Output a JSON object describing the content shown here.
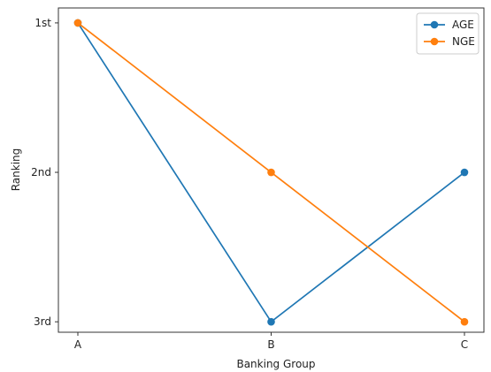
{
  "chart_data": {
    "type": "line",
    "title": "",
    "xlabel": "Banking Group",
    "ylabel": "Ranking",
    "categories": [
      "A",
      "B",
      "C"
    ],
    "y_ticks": [
      {
        "value": 1,
        "label": "1st"
      },
      {
        "value": 2,
        "label": "2nd"
      },
      {
        "value": 3,
        "label": "3rd"
      }
    ],
    "y_inverted": true,
    "ylim": [
      0.9,
      3.07
    ],
    "grid": false,
    "legend_position": "top-right",
    "series": [
      {
        "name": "AGE",
        "values": [
          1,
          3,
          2
        ],
        "color": "#1f77b4",
        "marker": "circle"
      },
      {
        "name": "NGE",
        "values": [
          1,
          2,
          3
        ],
        "color": "#ff7f0e",
        "marker": "circle"
      }
    ]
  }
}
